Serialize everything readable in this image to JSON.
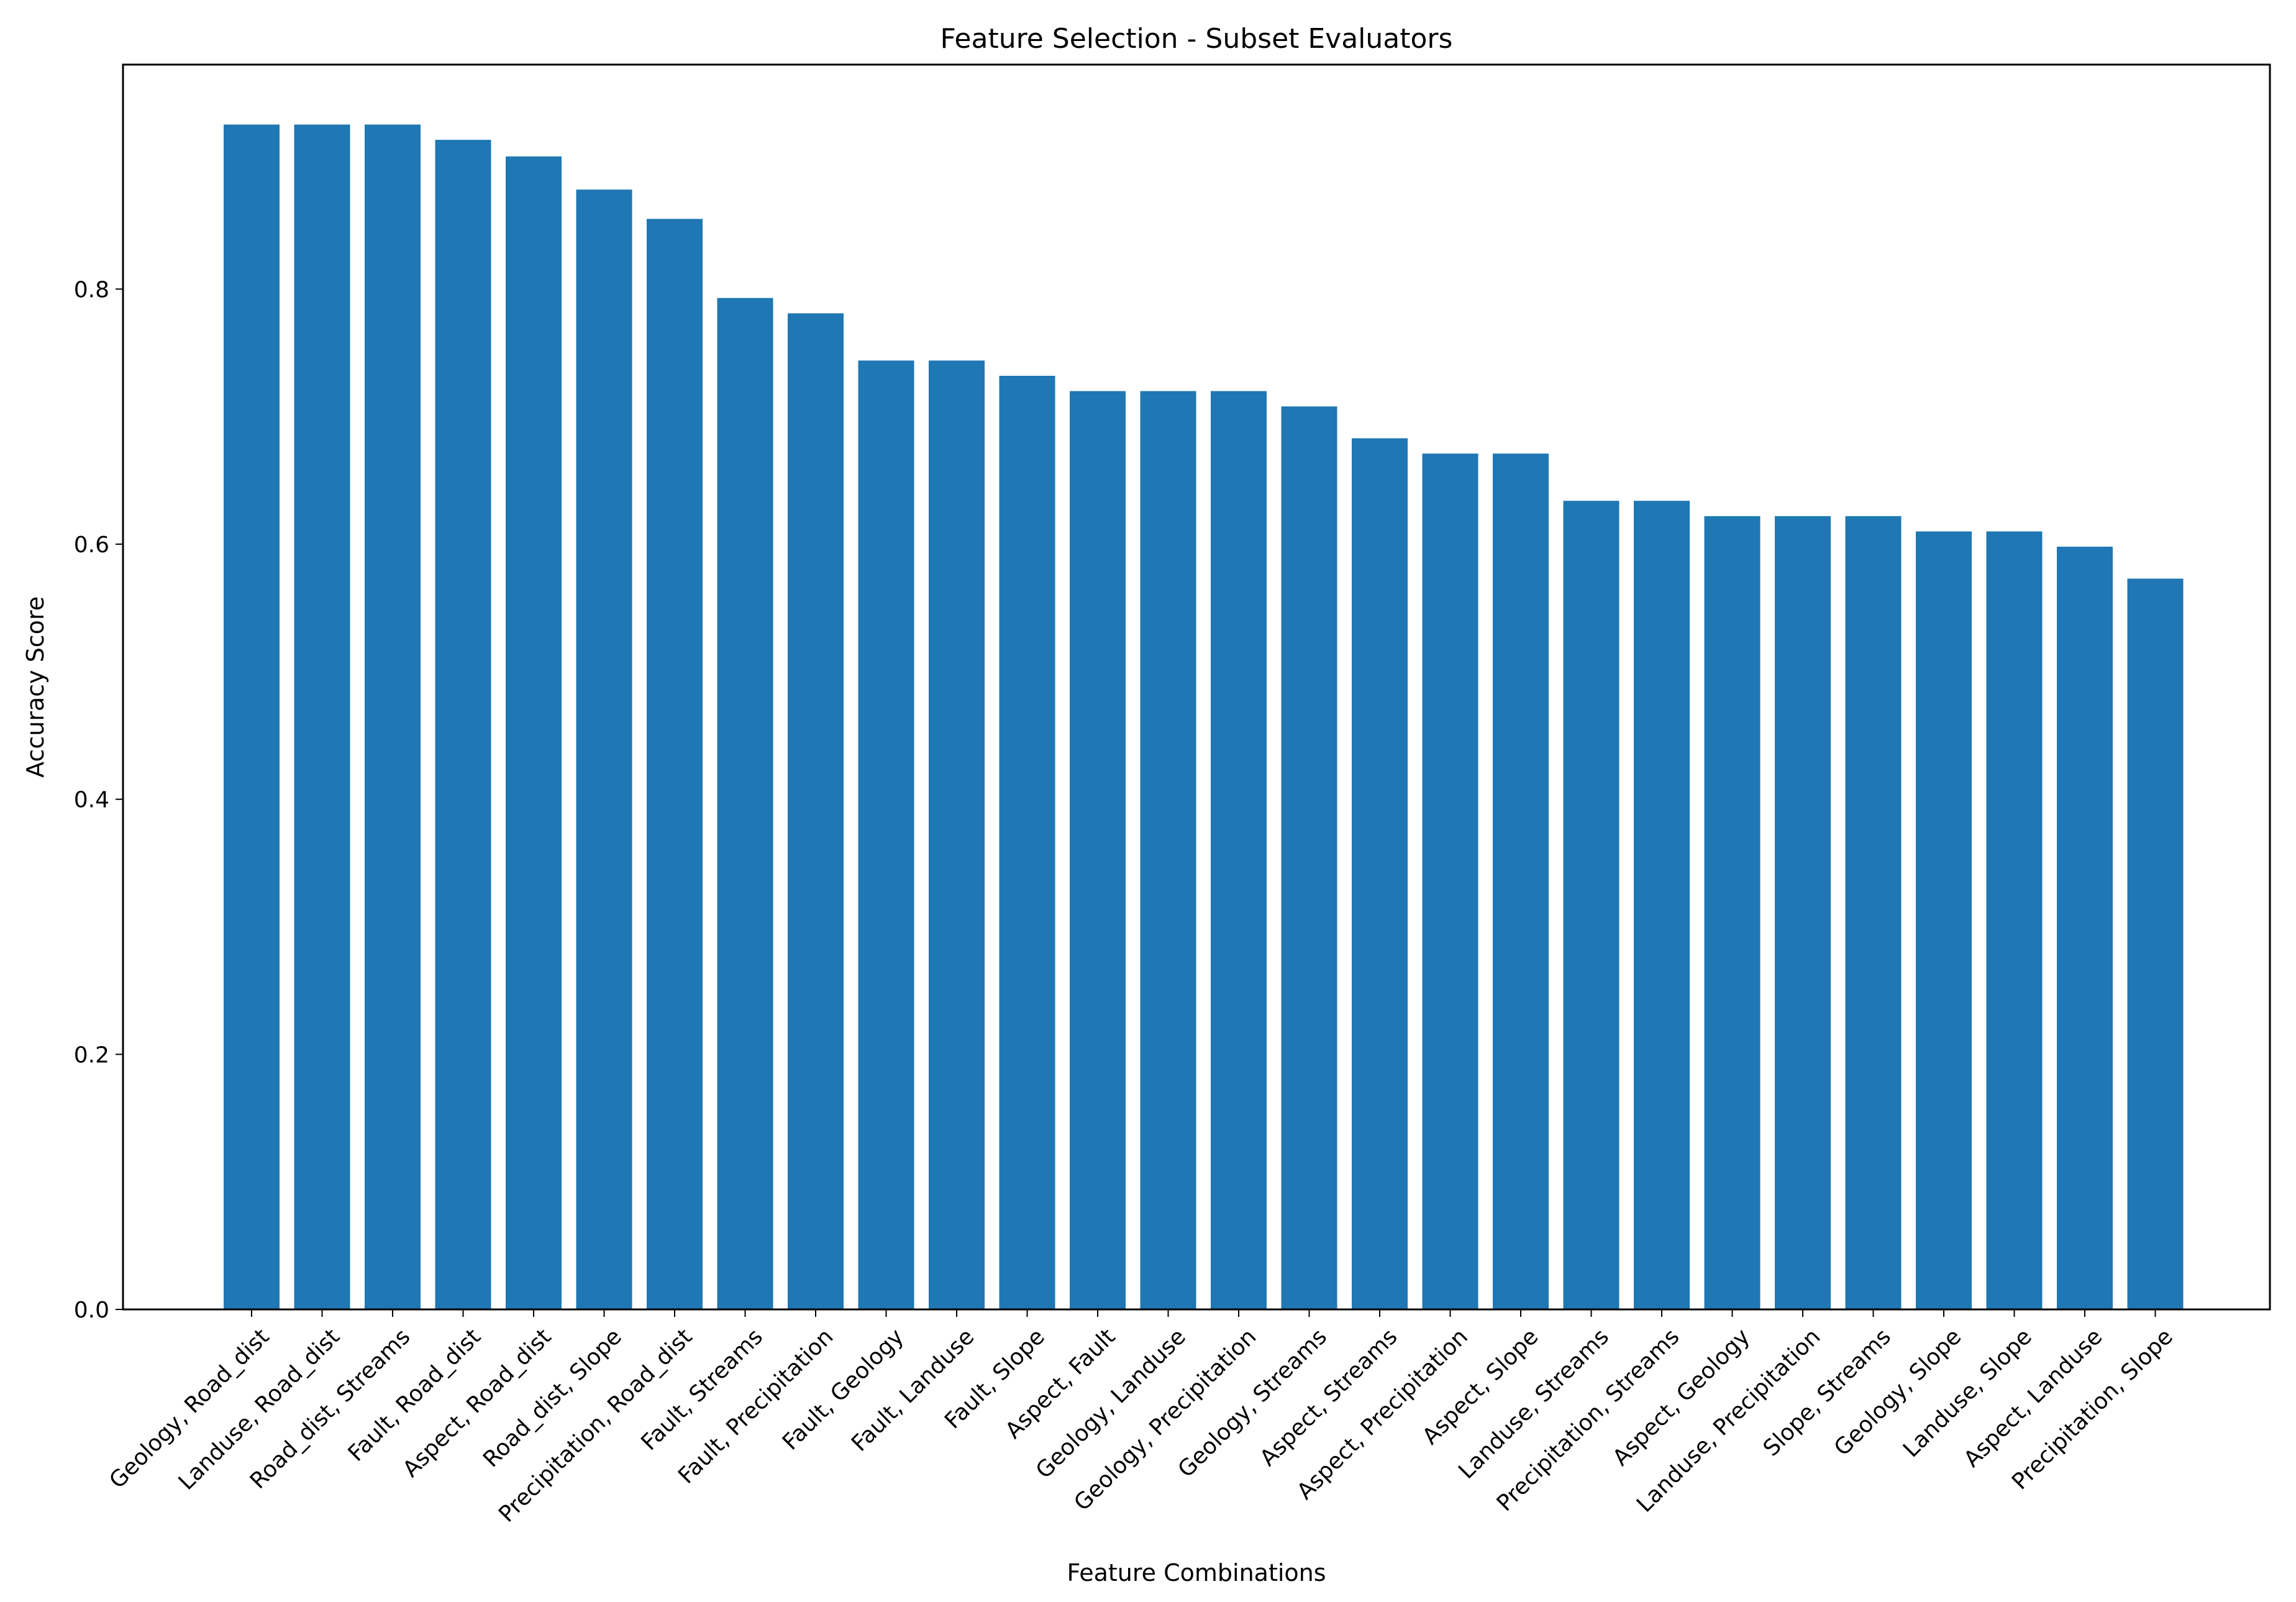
{
  "chart_data": {
    "type": "bar",
    "title": "Feature Selection - Subset Evaluators",
    "xlabel": "Feature Combinations",
    "ylabel": "Accuracy Score",
    "ylim": [
      0,
      0.976
    ],
    "yticks": [
      0.0,
      0.2,
      0.4,
      0.6,
      0.8
    ],
    "ytick_labels": [
      "0.0",
      "0.2",
      "0.4",
      "0.6",
      "0.8"
    ],
    "bar_color": "#1f77b4",
    "grid": false,
    "categories": [
      "Geology, Road_dist",
      "Landuse, Road_dist",
      "Road_dist, Streams",
      "Fault, Road_dist",
      "Aspect, Road_dist",
      "Road_dist, Slope",
      "Precipitation, Road_dist",
      "Fault, Streams",
      "Fault, Precipitation",
      "Fault, Geology",
      "Fault, Landuse",
      "Fault, Slope",
      "Aspect, Fault",
      "Geology, Landuse",
      "Geology, Precipitation",
      "Geology, Streams",
      "Aspect, Streams",
      "Aspect, Precipitation",
      "Aspect, Slope",
      "Landuse, Streams",
      "Precipitation, Streams",
      "Aspect, Geology",
      "Landuse, Precipitation",
      "Slope, Streams",
      "Geology, Slope",
      "Landuse, Slope",
      "Aspect, Landuse",
      "Precipitation, Slope"
    ],
    "values": [
      0.929,
      0.929,
      0.929,
      0.917,
      0.904,
      0.878,
      0.855,
      0.793,
      0.781,
      0.744,
      0.744,
      0.732,
      0.72,
      0.72,
      0.72,
      0.708,
      0.683,
      0.671,
      0.671,
      0.634,
      0.634,
      0.622,
      0.622,
      0.622,
      0.61,
      0.61,
      0.598,
      0.573
    ]
  }
}
